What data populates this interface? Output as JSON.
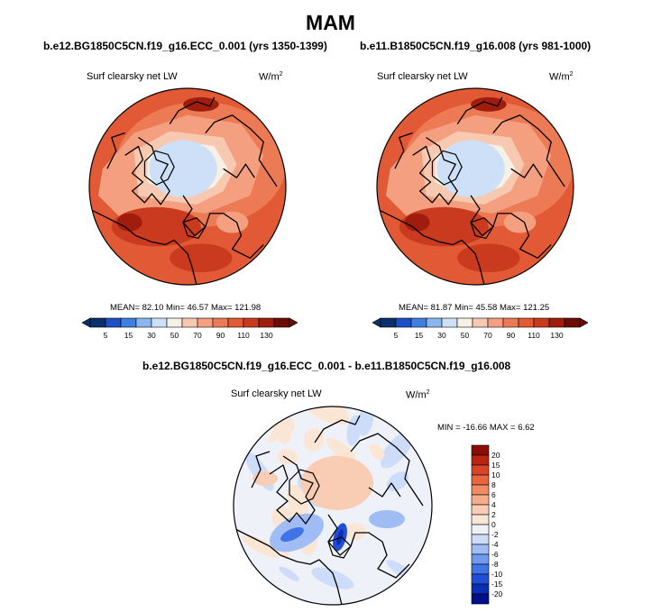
{
  "title": "MAM",
  "colors": {
    "abs_scale": [
      "#08306b",
      "#1f4fc4",
      "#3f7fe0",
      "#8ab6f0",
      "#cde0f7",
      "#f7f0e4",
      "#f8c9b1",
      "#f4a080",
      "#ec7a55",
      "#e25a35",
      "#c93a1f",
      "#a01c0c",
      "#6b0b05"
    ],
    "diff_scale": [
      "#00108a",
      "#0a2fb5",
      "#1f4fd6",
      "#3f73e6",
      "#6f9af0",
      "#9fbdf4",
      "#cddcf8",
      "#eef2f8",
      "#fbe6d6",
      "#f8cdb4",
      "#f5ad8c",
      "#ef8a62",
      "#e8653f",
      "#d94426",
      "#b82612",
      "#8c0d05"
    ]
  },
  "panels": [
    {
      "title": "b.e12.BG1850C5CN.f19_g16.ECC_0.001 (yrs 1350-1399)",
      "variable": "Surf clearsky net LW",
      "units": "W/m",
      "units_exp": "2",
      "stats": "MEAN=  82.10  Min=  46.57  Max= 121.98",
      "colorbar_labels": [
        "5",
        "15",
        "30",
        "50",
        "70",
        "90",
        "110",
        "130"
      ]
    },
    {
      "title": "b.e11.B1850C5CN.f19_g16.008 (yrs 981-1000)",
      "variable": "Surf clearsky net LW",
      "units": "W/m",
      "units_exp": "2",
      "stats": "MEAN=  81.87  Min=  45.58  Max= 121.25",
      "colorbar_labels": [
        "5",
        "15",
        "30",
        "50",
        "70",
        "90",
        "110",
        "130"
      ]
    }
  ],
  "diff": {
    "title": "b.e12.BG1850C5CN.f19_g16.ECC_0.001 - b.e11.B1850C5CN.f19_g16.008",
    "variable": "Surf clearsky net LW",
    "units": "W/m",
    "units_exp": "2",
    "stats": "MIN = -16.66 MAX =   6.62",
    "colorbar_labels": [
      "20",
      "15",
      "10",
      "8",
      "6",
      "4",
      "2",
      "0",
      "-2",
      "-4",
      "-6",
      "-8",
      "-10",
      "-15",
      "-20"
    ]
  }
}
